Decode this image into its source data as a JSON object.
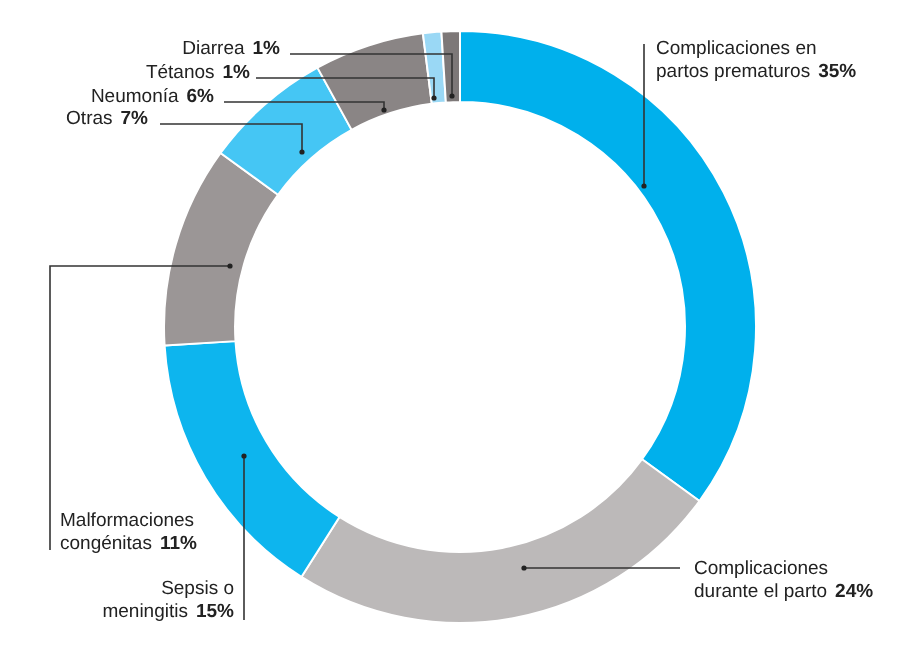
{
  "chart_data": {
    "type": "donut",
    "categories": [
      "Complicaciones en partos prematuros",
      "Complicaciones durante el parto",
      "Sepsis o meningitis",
      "Malformaciones congénitas",
      "Otras",
      "Neumonía",
      "Tétanos",
      "Diarrea"
    ],
    "values": [
      35,
      24,
      15,
      11,
      7,
      6,
      1,
      1
    ],
    "value_labels": [
      "35%",
      "24%",
      "15%",
      "11%",
      "7%",
      "6%",
      "1%",
      "1%"
    ],
    "colors": [
      "#00b0ec",
      "#bcb9b9",
      "#0db5ee",
      "#9b9696",
      "#45c6f4",
      "#8a8585",
      "#9ad8f5",
      "#7d7878"
    ],
    "legend": false
  }
}
